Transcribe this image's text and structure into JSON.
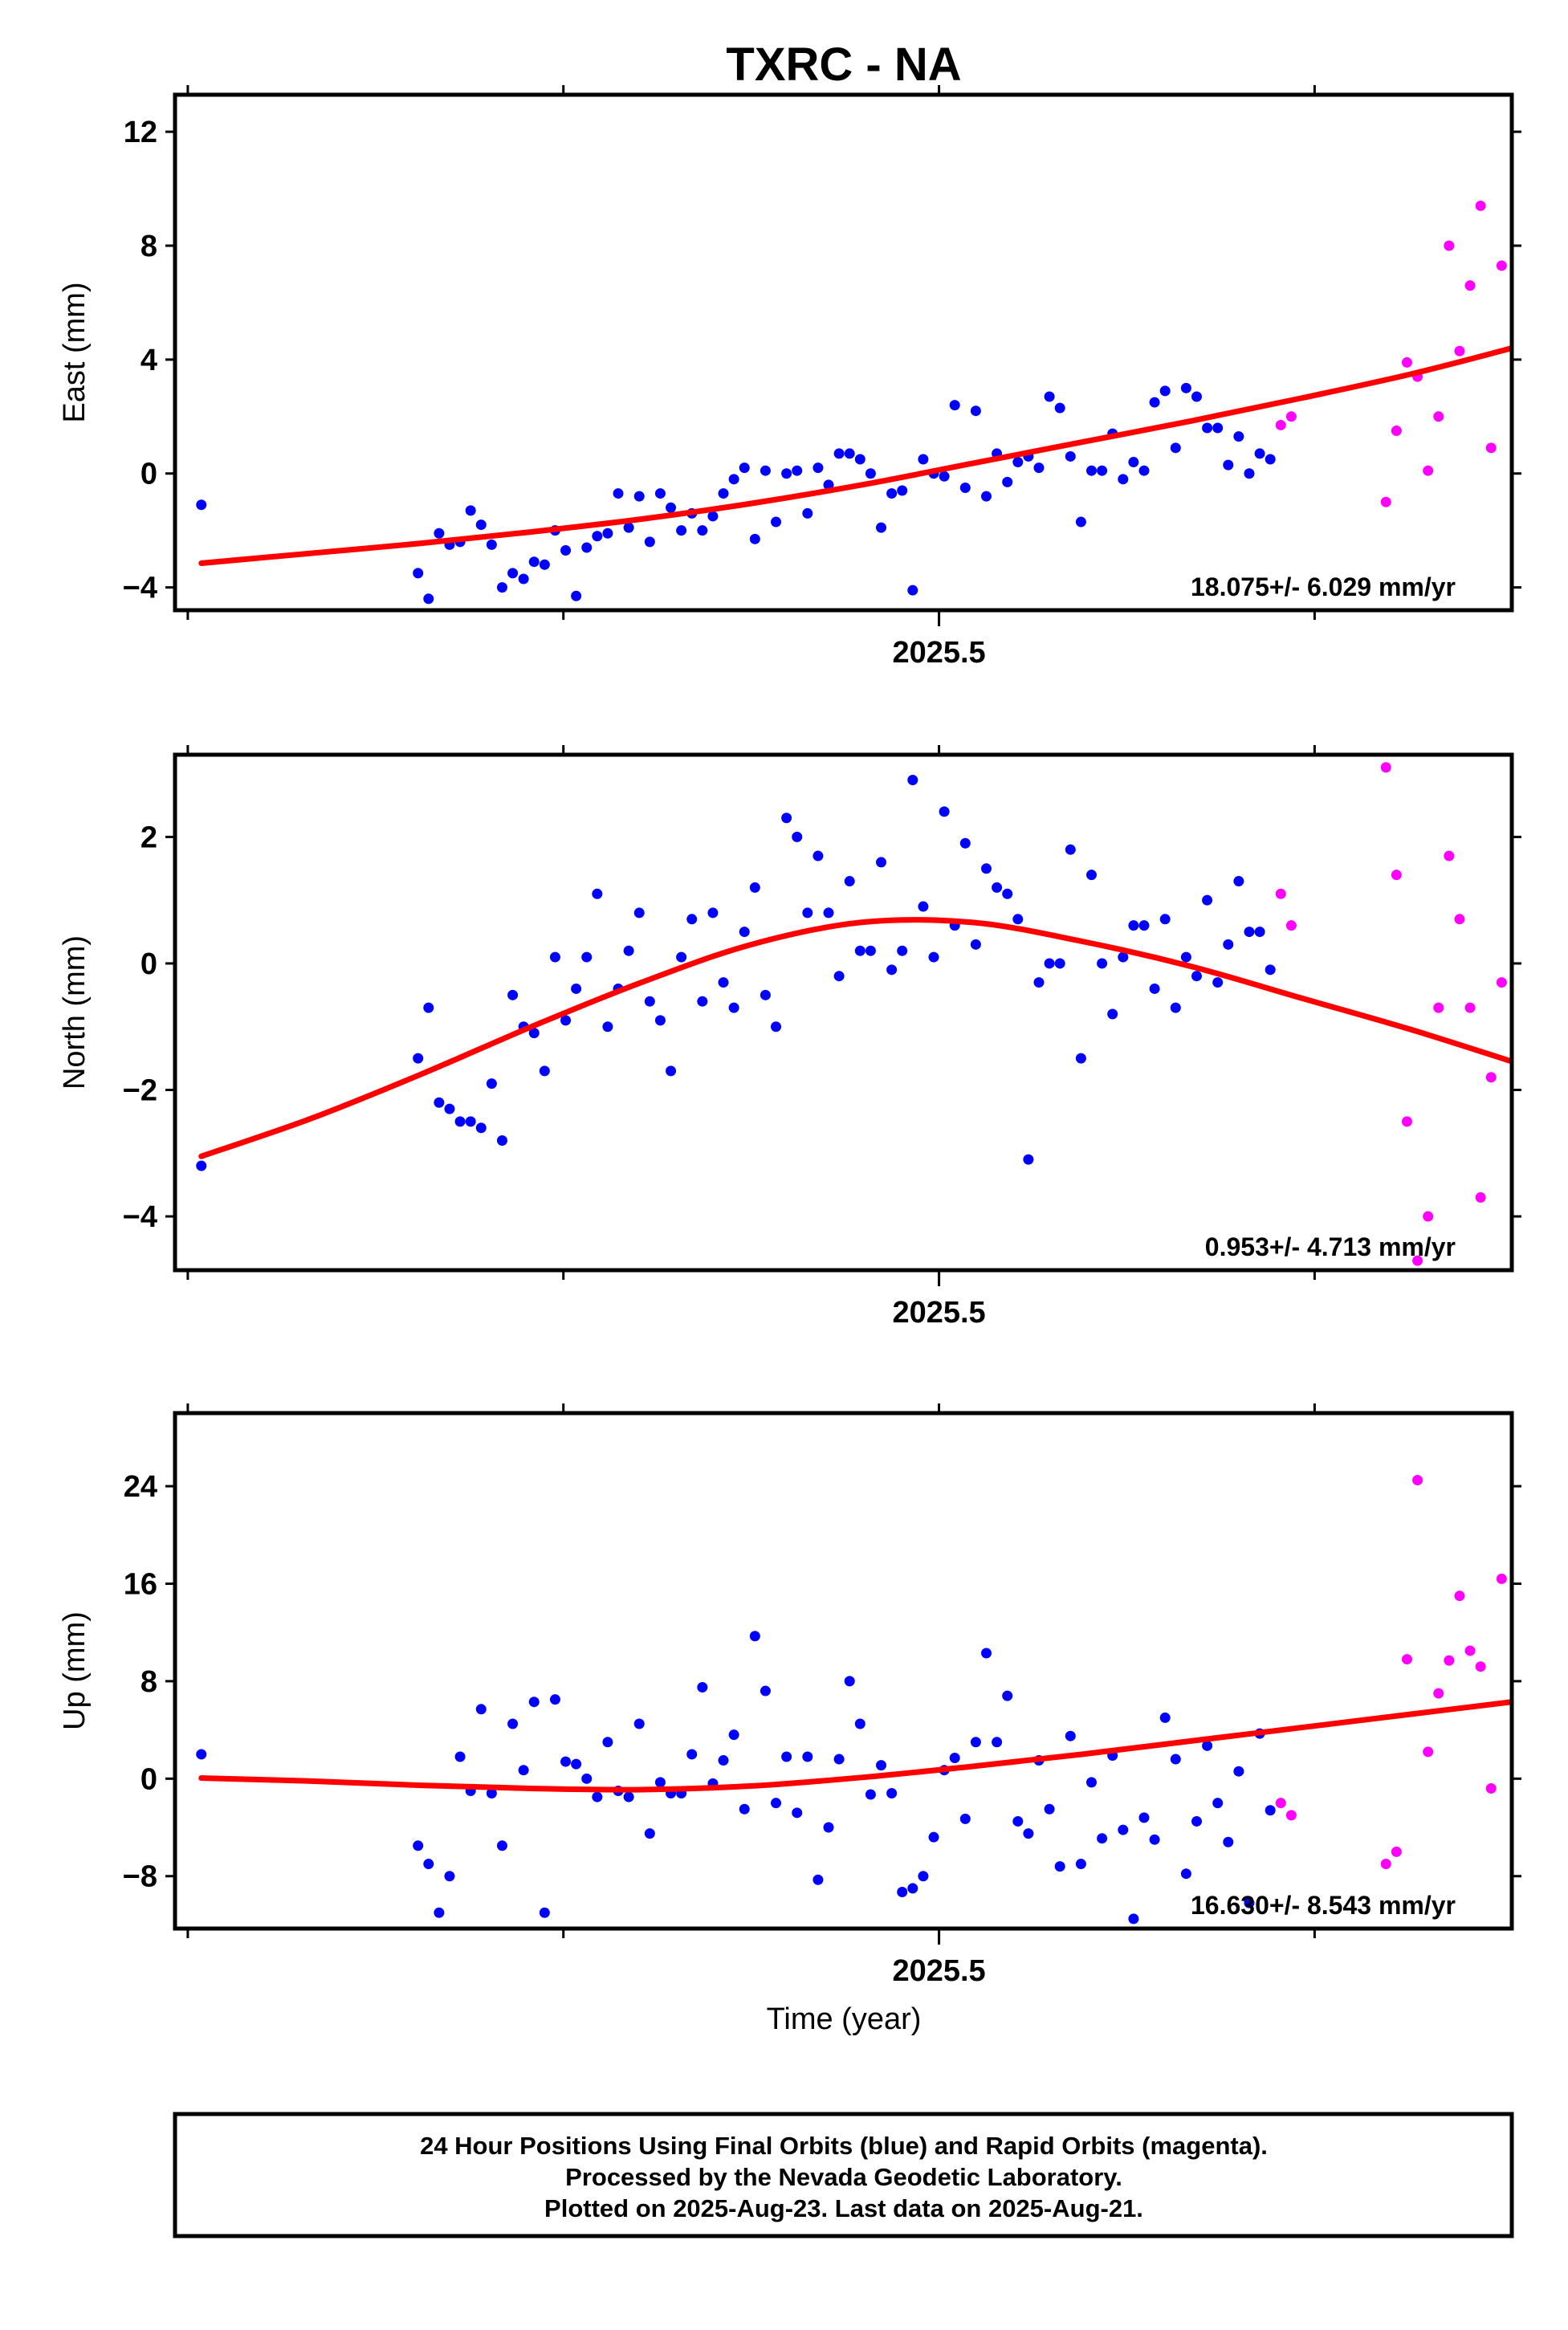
{
  "title": "TXRC - NA",
  "xlabel": "Time (year)",
  "footer": {
    "line1": "24 Hour Positions Using Final Orbits (blue) and Rapid Orbits (magenta).",
    "line2": "Processed by the Nevada Geodetic Laboratory.",
    "line3": "Plotted on 2025-Aug-23. Last data on 2025-Aug-21."
  },
  "colors": {
    "final": "#0000ff",
    "rapid": "#ff00ff",
    "fit": "#ff0000"
  },
  "chart_data": [
    {
      "type": "scatter",
      "component": "East",
      "ylabel": "East (mm)",
      "rate_label": "18.075+/- 6.029 mm/yr",
      "xlim": [
        2025.2966,
        2025.6525
      ],
      "ylim": [
        -4.8,
        13.3
      ],
      "yticks": [
        -4,
        0,
        4,
        8,
        12
      ],
      "xticks": [
        2025.5
      ],
      "xticks_minor": [
        2025.3,
        2025.4,
        2025.5,
        2025.6
      ],
      "final": {
        "x": [
          2025.3036,
          2025.3613,
          2025.3641,
          2025.3669,
          2025.3697,
          2025.3725,
          2025.3753,
          2025.3781,
          2025.3809,
          2025.3837,
          2025.3865,
          2025.3894,
          2025.3922,
          2025.395,
          2025.3978,
          2025.4006,
          2025.4034,
          2025.4062,
          2025.409,
          2025.4118,
          2025.4146,
          2025.4174,
          2025.4202,
          2025.423,
          2025.4258,
          2025.4286,
          2025.4314,
          2025.4342,
          2025.437,
          2025.4398,
          2025.4426,
          2025.4454,
          2025.4482,
          2025.451,
          2025.4538,
          2025.4566,
          2025.4594,
          2025.4622,
          2025.465,
          2025.4678,
          2025.4706,
          2025.4734,
          2025.4762,
          2025.479,
          2025.4818,
          2025.4846,
          2025.4874,
          2025.4902,
          2025.493,
          2025.4958,
          2025.4986,
          2025.5014,
          2025.5042,
          2025.507,
          2025.5098,
          2025.5126,
          2025.5154,
          2025.5182,
          2025.521,
          2025.5238,
          2025.5266,
          2025.5294,
          2025.5322,
          2025.535,
          2025.5378,
          2025.5406,
          2025.5434,
          2025.5462,
          2025.549,
          2025.5518,
          2025.5546,
          2025.5574,
          2025.5602,
          2025.563,
          2025.5658,
          2025.5686,
          2025.5714,
          2025.5742,
          2025.577,
          2025.5798,
          2025.5826,
          2025.5854,
          2025.5882
        ],
        "y": [
          -1.1,
          -3.5,
          -4.4,
          -2.1,
          -2.5,
          -2.4,
          -1.3,
          -1.8,
          -2.5,
          -4.0,
          -3.5,
          -3.7,
          -3.1,
          -3.2,
          -2.0,
          -2.7,
          -4.3,
          -2.6,
          -2.2,
          -2.1,
          -0.7,
          -1.9,
          -0.8,
          -2.4,
          -0.7,
          -1.2,
          -2.0,
          -1.4,
          -2.0,
          -1.5,
          -0.7,
          -0.2,
          0.2,
          -2.3,
          0.1,
          -1.7,
          0.0,
          0.1,
          -1.4,
          0.2,
          -0.4,
          0.7,
          0.7,
          0.5,
          0.0,
          -1.9,
          -0.7,
          -0.6,
          -4.1,
          0.5,
          0.0,
          -0.1,
          2.4,
          -0.5,
          2.2,
          -0.8,
          0.7,
          -0.3,
          0.4,
          0.6,
          0.2,
          2.7,
          2.3,
          0.6,
          -1.7,
          0.1,
          0.1,
          1.4,
          -0.2,
          0.4,
          0.1,
          2.5,
          2.9,
          0.9,
          3.0,
          2.7,
          1.6,
          1.6,
          0.3,
          1.3,
          0.0,
          0.7,
          0.5
        ]
      },
      "rapid": {
        "x": [
          2025.591,
          2025.5938,
          2025.619,
          2025.6218,
          2025.6246,
          2025.6274,
          2025.6302,
          2025.633,
          2025.6358,
          2025.6386,
          2025.6414,
          2025.6442,
          2025.647,
          2025.6498
        ],
        "y": [
          1.7,
          2.0,
          -1.0,
          1.5,
          3.9,
          3.4,
          0.1,
          2.0,
          8.0,
          4.3,
          6.6,
          9.4,
          0.9,
          7.3
        ]
      },
      "fit": {
        "x": [
          2025.3036,
          2025.3329,
          2025.3622,
          2025.3915,
          2025.4208,
          2025.4501,
          2025.4794,
          2025.5087,
          2025.538,
          2025.5673,
          2025.5966,
          2025.6259,
          2025.6525
        ],
        "y": [
          -3.15,
          -2.8,
          -2.45,
          -2.05,
          -1.6,
          -1.05,
          -0.4,
          0.35,
          1.1,
          1.85,
          2.65,
          3.5,
          4.4
        ]
      }
    },
    {
      "type": "scatter",
      "component": "North",
      "ylabel": "North (mm)",
      "rate_label": "0.953+/- 4.713 mm/yr",
      "xlim": [
        2025.2966,
        2025.6525
      ],
      "ylim": [
        -4.85,
        3.3
      ],
      "yticks": [
        -4,
        -2,
        0,
        2
      ],
      "xticks": [
        2025.5
      ],
      "xticks_minor": [
        2025.3,
        2025.4,
        2025.5,
        2025.6
      ],
      "final": {
        "x": [
          2025.3036,
          2025.3613,
          2025.3641,
          2025.3669,
          2025.3697,
          2025.3725,
          2025.3753,
          2025.3781,
          2025.3809,
          2025.3837,
          2025.3865,
          2025.3894,
          2025.3922,
          2025.395,
          2025.3978,
          2025.4006,
          2025.4034,
          2025.4062,
          2025.409,
          2025.4118,
          2025.4146,
          2025.4174,
          2025.4202,
          2025.423,
          2025.4258,
          2025.4286,
          2025.4314,
          2025.4342,
          2025.437,
          2025.4398,
          2025.4426,
          2025.4454,
          2025.4482,
          2025.451,
          2025.4538,
          2025.4566,
          2025.4594,
          2025.4622,
          2025.465,
          2025.4678,
          2025.4706,
          2025.4734,
          2025.4762,
          2025.479,
          2025.4818,
          2025.4846,
          2025.4874,
          2025.4902,
          2025.493,
          2025.4958,
          2025.4986,
          2025.5014,
          2025.5042,
          2025.507,
          2025.5098,
          2025.5126,
          2025.5154,
          2025.5182,
          2025.521,
          2025.5238,
          2025.5266,
          2025.5294,
          2025.5322,
          2025.535,
          2025.5378,
          2025.5406,
          2025.5434,
          2025.5462,
          2025.549,
          2025.5518,
          2025.5546,
          2025.5574,
          2025.5602,
          2025.563,
          2025.5658,
          2025.5686,
          2025.5714,
          2025.5742,
          2025.577,
          2025.5798,
          2025.5826,
          2025.5854,
          2025.5882
        ],
        "y": [
          -3.2,
          -1.5,
          -0.7,
          -2.2,
          -2.3,
          -2.5,
          -2.5,
          -2.6,
          -1.9,
          -2.8,
          -0.5,
          -1.0,
          -1.1,
          -1.7,
          0.1,
          -0.9,
          -0.4,
          0.1,
          1.1,
          -1.0,
          -0.4,
          0.2,
          0.8,
          -0.6,
          -0.9,
          -1.7,
          0.1,
          0.7,
          -0.6,
          0.8,
          -0.3,
          -0.7,
          0.5,
          1.2,
          -0.5,
          -1.0,
          2.3,
          2.0,
          0.8,
          1.7,
          0.8,
          -0.2,
          1.3,
          0.2,
          0.2,
          1.6,
          -0.1,
          0.2,
          2.9,
          0.9,
          0.1,
          2.4,
          0.6,
          1.9,
          0.3,
          1.5,
          1.2,
          1.1,
          0.7,
          -3.1,
          -0.3,
          0.0,
          0.0,
          1.8,
          -1.5,
          1.4,
          0.0,
          -0.8,
          0.1,
          0.6,
          0.6,
          -0.4,
          0.7,
          -0.7,
          0.1,
          -0.2,
          1.0,
          -0.3,
          0.3,
          1.3,
          0.5,
          0.5,
          -0.1
        ]
      },
      "rapid": {
        "x": [
          2025.591,
          2025.5938,
          2025.619,
          2025.6218,
          2025.6246,
          2025.6274,
          2025.6302,
          2025.633,
          2025.6358,
          2025.6386,
          2025.6414,
          2025.6442,
          2025.647,
          2025.6498
        ],
        "y": [
          1.1,
          0.6,
          3.1,
          1.4,
          -2.5,
          -4.7,
          -4.0,
          -0.7,
          1.7,
          0.7,
          -0.7,
          -3.7,
          -1.8,
          -0.3
        ]
      },
      "fit": {
        "x": [
          2025.3036,
          2025.3329,
          2025.3622,
          2025.3915,
          2025.4208,
          2025.4501,
          2025.4794,
          2025.5087,
          2025.538,
          2025.5673,
          2025.5966,
          2025.6259,
          2025.6525
        ],
        "y": [
          -3.05,
          -2.45,
          -1.75,
          -1.0,
          -0.3,
          0.3,
          0.65,
          0.65,
          0.35,
          -0.05,
          -0.55,
          -1.05,
          -1.55
        ]
      }
    },
    {
      "type": "scatter",
      "component": "Up",
      "ylabel": "Up (mm)",
      "rate_label": "16.630+/- 8.543 mm/yr",
      "xlim": [
        2025.2966,
        2025.6525
      ],
      "ylim": [
        -12.3,
        30.0
      ],
      "yticks": [
        -8,
        0,
        8,
        16,
        24
      ],
      "xticks": [
        2025.5
      ],
      "xticks_minor": [
        2025.3,
        2025.4,
        2025.5,
        2025.6
      ],
      "final": {
        "x": [
          2025.3036,
          2025.3613,
          2025.3641,
          2025.3669,
          2025.3697,
          2025.3725,
          2025.3753,
          2025.3781,
          2025.3809,
          2025.3837,
          2025.3865,
          2025.3894,
          2025.3922,
          2025.395,
          2025.3978,
          2025.4006,
          2025.4034,
          2025.4062,
          2025.409,
          2025.4118,
          2025.4146,
          2025.4174,
          2025.4202,
          2025.423,
          2025.4258,
          2025.4286,
          2025.4314,
          2025.4342,
          2025.437,
          2025.4398,
          2025.4426,
          2025.4454,
          2025.4482,
          2025.451,
          2025.4538,
          2025.4566,
          2025.4594,
          2025.4622,
          2025.465,
          2025.4678,
          2025.4706,
          2025.4734,
          2025.4762,
          2025.479,
          2025.4818,
          2025.4846,
          2025.4874,
          2025.4902,
          2025.493,
          2025.4958,
          2025.4986,
          2025.5014,
          2025.5042,
          2025.507,
          2025.5098,
          2025.5126,
          2025.5154,
          2025.5182,
          2025.521,
          2025.5238,
          2025.5266,
          2025.5294,
          2025.5322,
          2025.535,
          2025.5378,
          2025.5406,
          2025.5434,
          2025.5462,
          2025.549,
          2025.5518,
          2025.5546,
          2025.5574,
          2025.5602,
          2025.563,
          2025.5658,
          2025.5686,
          2025.5714,
          2025.5742,
          2025.577,
          2025.5798,
          2025.5826,
          2025.5854,
          2025.5882
        ],
        "y": [
          2.0,
          -5.5,
          -7.0,
          -11.0,
          -8.0,
          1.8,
          -1.0,
          5.7,
          -1.2,
          -5.5,
          4.5,
          0.7,
          6.3,
          -11.0,
          6.5,
          1.4,
          1.2,
          0.0,
          -1.5,
          3.0,
          -1.0,
          -1.5,
          4.5,
          -4.5,
          -0.3,
          -1.2,
          -1.2,
          2.0,
          7.5,
          -0.4,
          1.5,
          3.6,
          -2.5,
          11.7,
          7.2,
          -2.0,
          1.8,
          -2.8,
          1.8,
          -8.3,
          -4.0,
          1.6,
          8.0,
          4.5,
          -1.3,
          1.1,
          -1.2,
          -9.3,
          -9.0,
          -8.0,
          -4.8,
          0.7,
          1.7,
          -3.3,
          3.0,
          10.3,
          3.0,
          6.8,
          -3.5,
          -4.5,
          1.5,
          -2.5,
          -7.2,
          3.5,
          -7.0,
          -0.3,
          -4.9,
          1.9,
          -4.2,
          -11.5,
          -3.2,
          -5.0,
          5.0,
          1.6,
          -7.8,
          -3.5,
          2.7,
          -2.0,
          -5.2,
          0.6,
          -10.2,
          3.7,
          -2.6
        ]
      },
      "rapid": {
        "x": [
          2025.591,
          2025.5938,
          2025.619,
          2025.6218,
          2025.6246,
          2025.6274,
          2025.6302,
          2025.633,
          2025.6358,
          2025.6386,
          2025.6414,
          2025.6442,
          2025.647,
          2025.6498
        ],
        "y": [
          -2.0,
          -3.0,
          -7.0,
          -6.0,
          9.8,
          24.5,
          2.2,
          7.0,
          9.7,
          15.0,
          10.5,
          9.2,
          -0.8,
          16.4
        ]
      },
      "fit": {
        "x": [
          2025.3036,
          2025.3329,
          2025.3622,
          2025.3915,
          2025.4208,
          2025.4501,
          2025.4794,
          2025.5087,
          2025.538,
          2025.5673,
          2025.5966,
          2025.6259,
          2025.6525
        ],
        "y": [
          0.05,
          -0.2,
          -0.55,
          -0.8,
          -0.9,
          -0.6,
          0.1,
          1.0,
          2.0,
          3.1,
          4.2,
          5.3,
          6.3
        ]
      }
    }
  ]
}
